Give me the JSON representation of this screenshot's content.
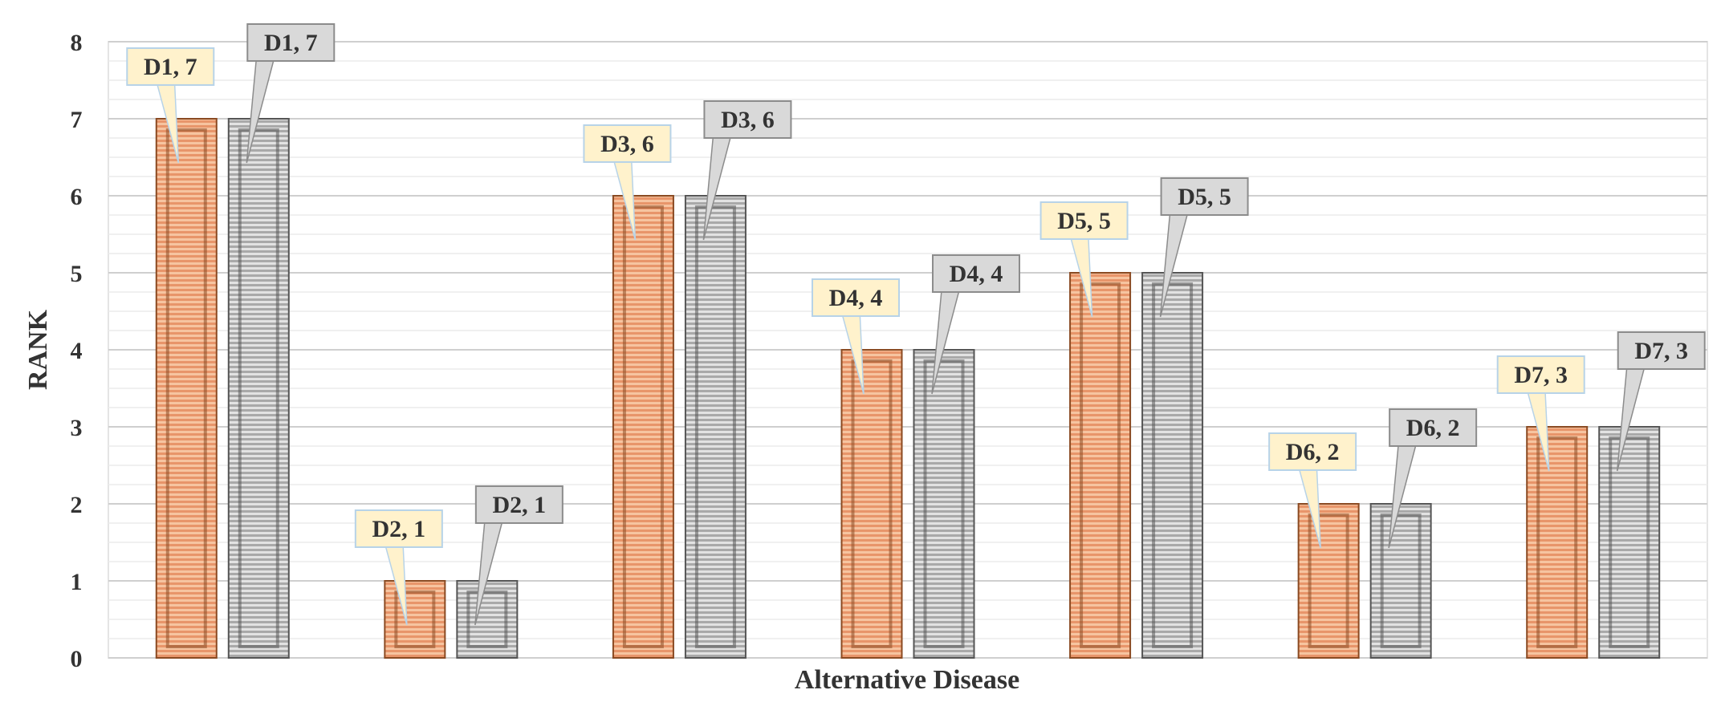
{
  "chart_data": {
    "type": "bar",
    "title": "",
    "xlabel": "Alternative Disease",
    "ylabel": "RANK",
    "ylim": [
      0,
      8
    ],
    "yticks": [
      0,
      1,
      2,
      3,
      4,
      5,
      6,
      7,
      8
    ],
    "grid": true,
    "categories": [
      "D1",
      "D2",
      "D3",
      "D4",
      "D5",
      "D6",
      "D7"
    ],
    "series": [
      {
        "values": [
          7,
          1,
          6,
          4,
          5,
          2,
          3
        ],
        "color": "#E8956A",
        "label_fill": "#FFF2CC",
        "labels": [
          "D1, 7",
          "D2, 1",
          "D3, 6",
          "D4, 4",
          "D5, 5",
          "D6, 2",
          "D7, 3"
        ]
      },
      {
        "values": [
          7,
          1,
          6,
          4,
          5,
          2,
          3
        ],
        "color": "#A6A6A6",
        "label_fill": "#D9D9D9",
        "labels": [
          "D1, 7",
          "D2, 1",
          "D3, 6",
          "D4, 4",
          "D5, 5",
          "D6, 2",
          "D7, 3"
        ]
      }
    ]
  }
}
